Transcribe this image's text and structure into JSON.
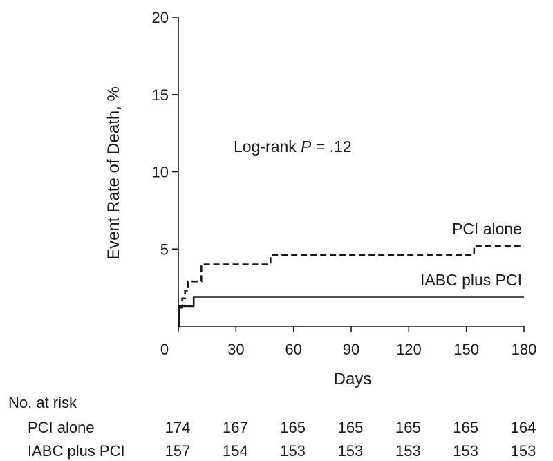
{
  "chart_data": {
    "type": "line",
    "chart_kind": "kaplan-meier",
    "xlabel": "Days",
    "ylabel": "Event Rate of Death, %",
    "xlim": [
      0,
      180
    ],
    "ylim": [
      0,
      20
    ],
    "x_ticks": [
      0,
      30,
      60,
      90,
      120,
      150,
      180
    ],
    "y_ticks": [
      5,
      10,
      15,
      20
    ],
    "grid": false,
    "annotation": {
      "prefix": "Log-rank ",
      "italic": "P",
      "suffix": " = .12"
    },
    "series": [
      {
        "name": "PCI alone",
        "style": "dashed",
        "color": "#1a1a1a",
        "points": [
          [
            0,
            0
          ],
          [
            0.6,
            0
          ],
          [
            0.6,
            1.2
          ],
          [
            2,
            1.2
          ],
          [
            2,
            1.8
          ],
          [
            3.5,
            1.8
          ],
          [
            3.5,
            2.3
          ],
          [
            5,
            2.3
          ],
          [
            5,
            2.9
          ],
          [
            12,
            2.9
          ],
          [
            12,
            4.0
          ],
          [
            48,
            4.0
          ],
          [
            48,
            4.6
          ],
          [
            154,
            4.6
          ],
          [
            154,
            5.2
          ],
          [
            180,
            5.2
          ]
        ]
      },
      {
        "name": "IABC plus PCI",
        "style": "solid",
        "color": "#1a1a1a",
        "points": [
          [
            0,
            0
          ],
          [
            0.6,
            0
          ],
          [
            0.6,
            1.3
          ],
          [
            8,
            1.3
          ],
          [
            8,
            1.9
          ],
          [
            180,
            1.9
          ]
        ]
      }
    ],
    "risk_table": {
      "title": "No. at risk",
      "rows": [
        {
          "label": "PCI alone",
          "values": [
            174,
            167,
            165,
            165,
            165,
            165,
            164
          ]
        },
        {
          "label": "IABC plus PCI",
          "values": [
            157,
            154,
            153,
            153,
            153,
            153,
            153
          ]
        }
      ]
    }
  }
}
